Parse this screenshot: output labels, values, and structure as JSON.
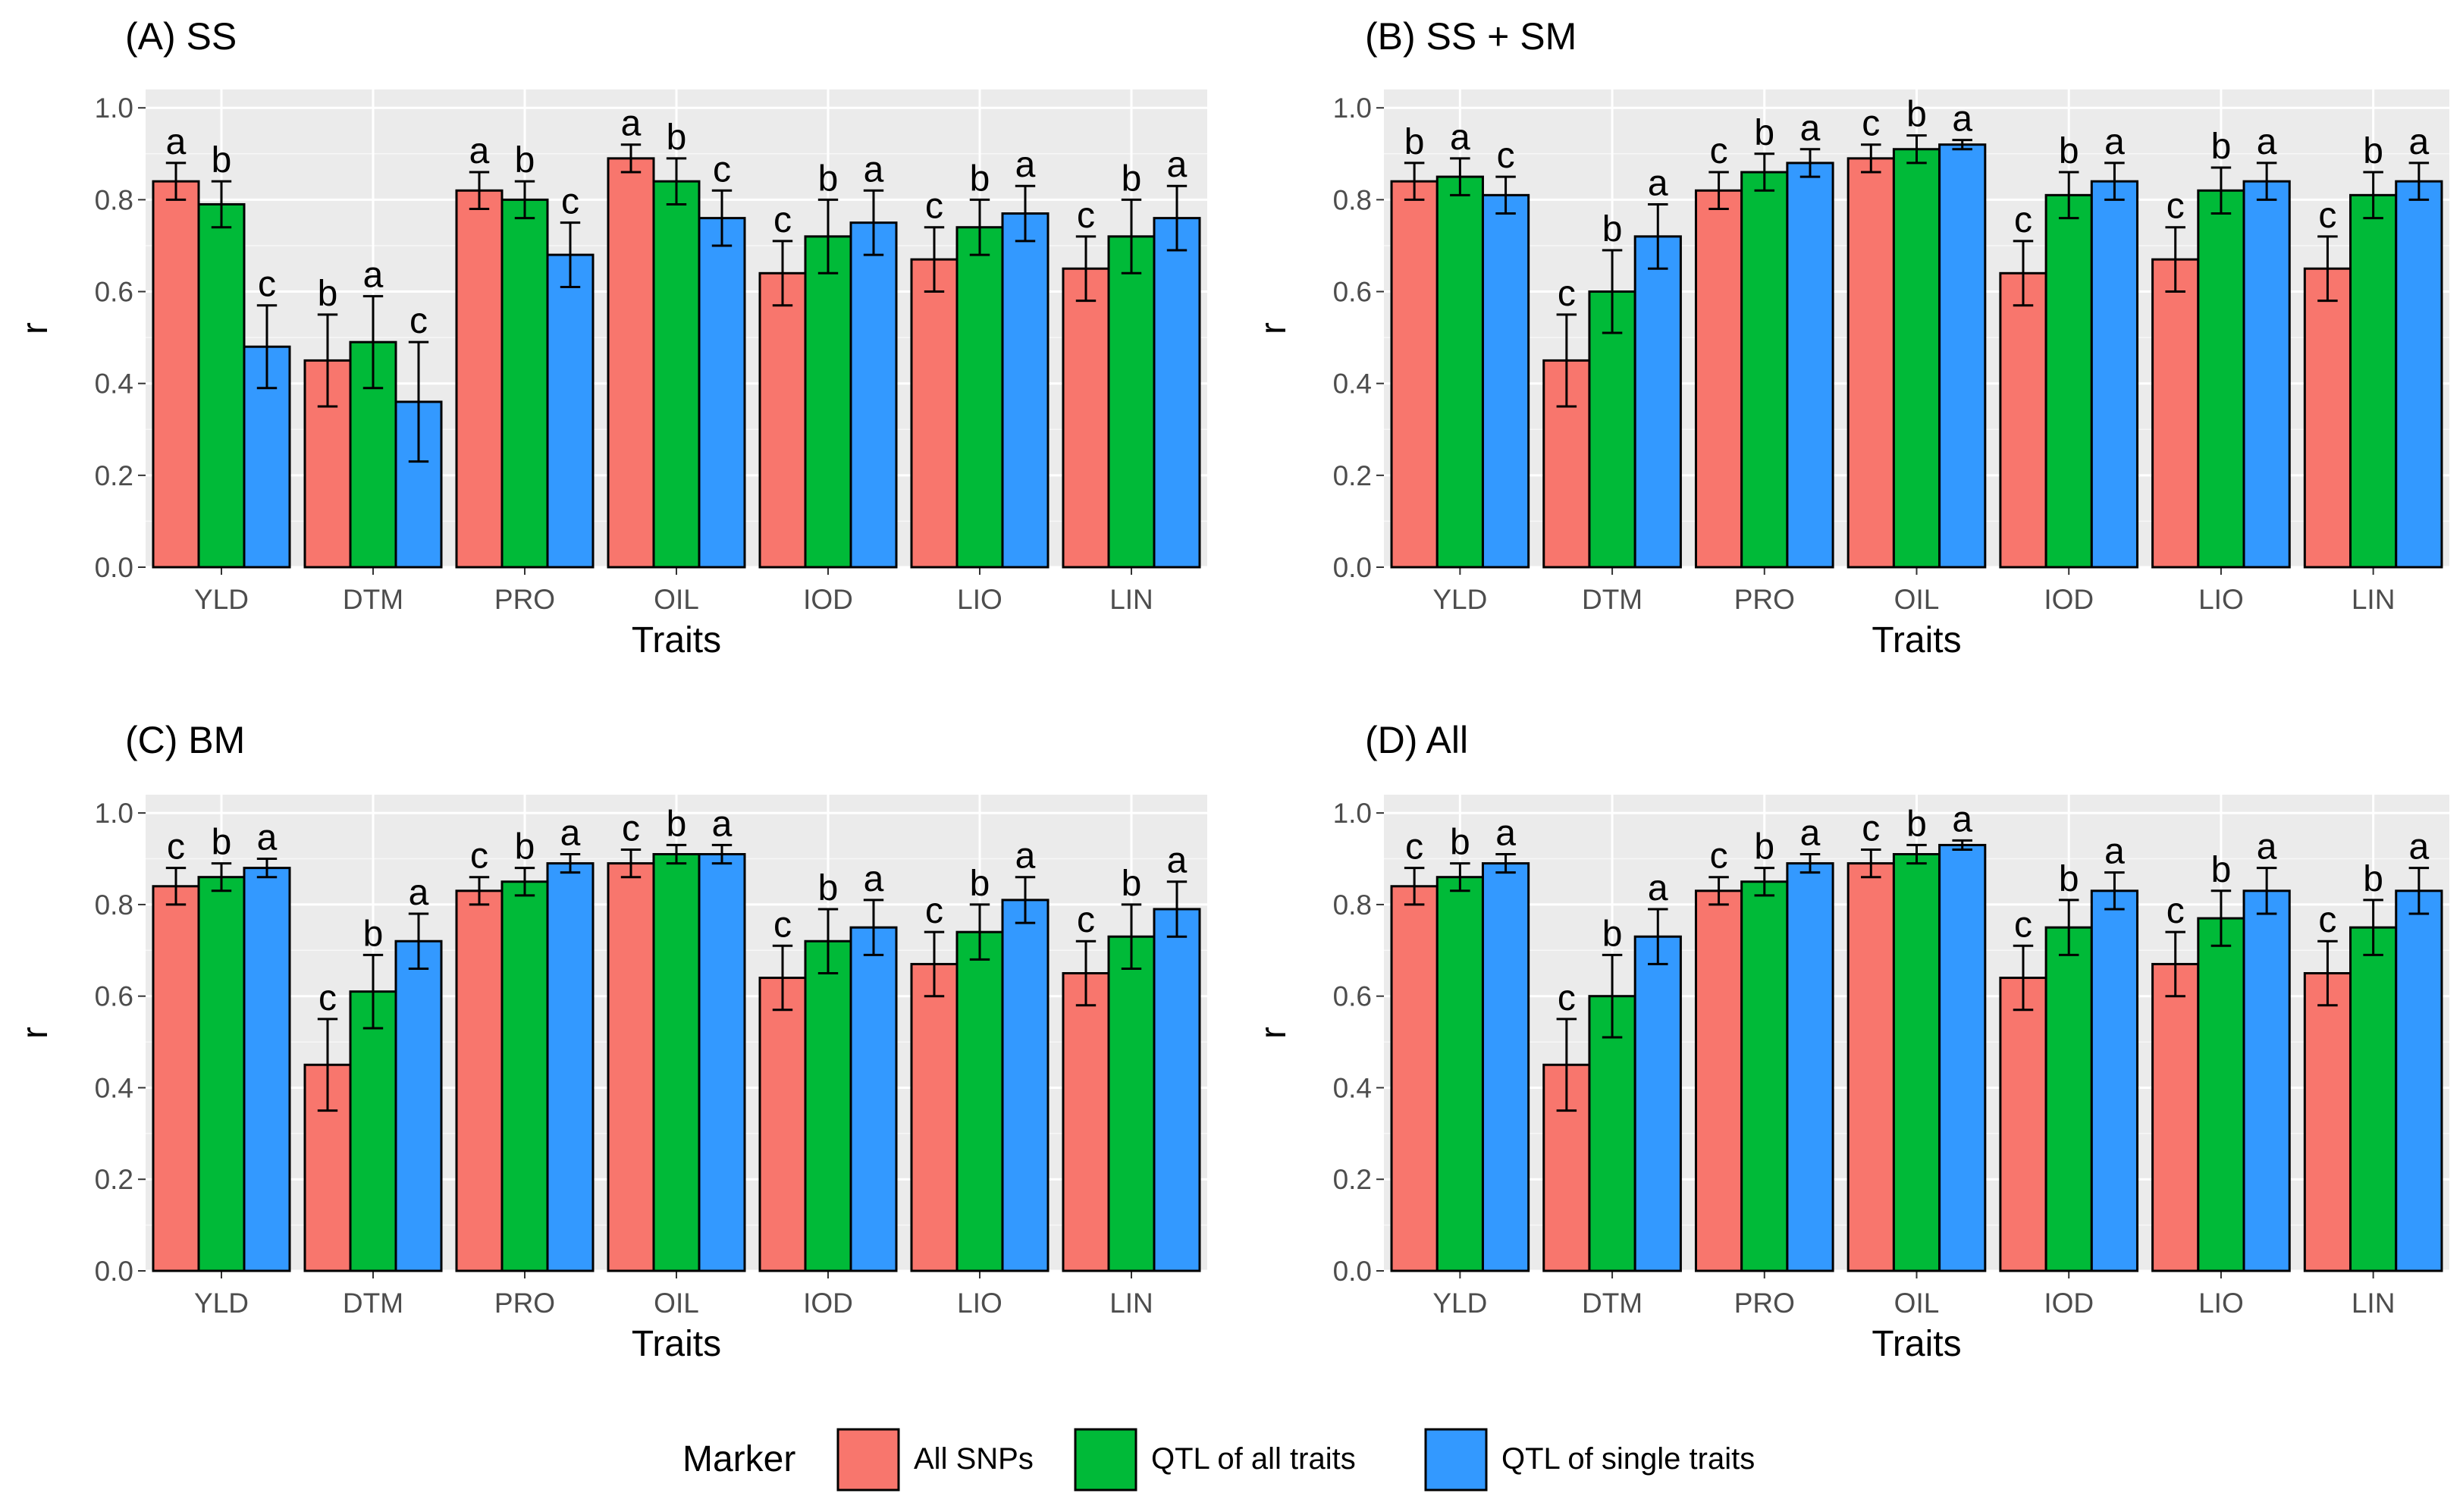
{
  "chart_data": [
    {
      "type": "bar",
      "title": "(A) SS",
      "xlabel": "Traits",
      "ylabel": "r",
      "ylim": [
        0,
        1.04
      ],
      "yticks": [
        "0.0",
        "0.2",
        "0.4",
        "0.6",
        "0.8",
        "1.0"
      ],
      "categories": [
        "YLD",
        "DTM",
        "PRO",
        "OIL",
        "IOD",
        "LIO",
        "LIN"
      ],
      "series": [
        {
          "name": "All SNPs",
          "values": [
            0.84,
            0.45,
            0.82,
            0.89,
            0.64,
            0.67,
            0.65
          ],
          "errors": [
            0.04,
            0.1,
            0.04,
            0.03,
            0.07,
            0.07,
            0.07
          ],
          "labels": [
            "a",
            "b",
            "a",
            "a",
            "c",
            "c",
            "c"
          ]
        },
        {
          "name": "QTL of all traits",
          "values": [
            0.79,
            0.49,
            0.8,
            0.84,
            0.72,
            0.74,
            0.72
          ],
          "errors": [
            0.05,
            0.1,
            0.04,
            0.05,
            0.08,
            0.06,
            0.08
          ],
          "labels": [
            "b",
            "a",
            "b",
            "b",
            "b",
            "b",
            "b"
          ]
        },
        {
          "name": "QTL of single traits",
          "values": [
            0.48,
            0.36,
            0.68,
            0.76,
            0.75,
            0.77,
            0.76
          ],
          "errors": [
            0.09,
            0.13,
            0.07,
            0.06,
            0.07,
            0.06,
            0.07
          ],
          "labels": [
            "c",
            "c",
            "c",
            "c",
            "a",
            "a",
            "a"
          ]
        }
      ]
    },
    {
      "type": "bar",
      "title": "(B) SS + SM",
      "xlabel": "Traits",
      "ylabel": "r",
      "ylim": [
        0,
        1.04
      ],
      "yticks": [
        "0.0",
        "0.2",
        "0.4",
        "0.6",
        "0.8",
        "1.0"
      ],
      "categories": [
        "YLD",
        "DTM",
        "PRO",
        "OIL",
        "IOD",
        "LIO",
        "LIN"
      ],
      "series": [
        {
          "name": "All SNPs",
          "values": [
            0.84,
            0.45,
            0.82,
            0.89,
            0.64,
            0.67,
            0.65
          ],
          "errors": [
            0.04,
            0.1,
            0.04,
            0.03,
            0.07,
            0.07,
            0.07
          ],
          "labels": [
            "b",
            "c",
            "c",
            "c",
            "c",
            "c",
            "c"
          ]
        },
        {
          "name": "QTL of all traits",
          "values": [
            0.85,
            0.6,
            0.86,
            0.91,
            0.81,
            0.82,
            0.81
          ],
          "errors": [
            0.04,
            0.09,
            0.04,
            0.03,
            0.05,
            0.05,
            0.05
          ],
          "labels": [
            "a",
            "b",
            "b",
            "b",
            "b",
            "b",
            "b"
          ]
        },
        {
          "name": "QTL of single traits",
          "values": [
            0.81,
            0.72,
            0.88,
            0.92,
            0.84,
            0.84,
            0.84
          ],
          "errors": [
            0.04,
            0.07,
            0.03,
            0.01,
            0.04,
            0.04,
            0.04
          ],
          "labels": [
            "c",
            "a",
            "a",
            "a",
            "a",
            "a",
            "a"
          ]
        }
      ]
    },
    {
      "type": "bar",
      "title": "(C) BM",
      "xlabel": "Traits",
      "ylabel": "r",
      "ylim": [
        0,
        1.04
      ],
      "yticks": [
        "0.0",
        "0.2",
        "0.4",
        "0.6",
        "0.8",
        "1.0"
      ],
      "categories": [
        "YLD",
        "DTM",
        "PRO",
        "OIL",
        "IOD",
        "LIO",
        "LIN"
      ],
      "series": [
        {
          "name": "All SNPs",
          "values": [
            0.84,
            0.45,
            0.83,
            0.89,
            0.64,
            0.67,
            0.65
          ],
          "errors": [
            0.04,
            0.1,
            0.03,
            0.03,
            0.07,
            0.07,
            0.07
          ],
          "labels": [
            "c",
            "c",
            "c",
            "c",
            "c",
            "c",
            "c"
          ]
        },
        {
          "name": "QTL of all traits",
          "values": [
            0.86,
            0.61,
            0.85,
            0.91,
            0.72,
            0.74,
            0.73
          ],
          "errors": [
            0.03,
            0.08,
            0.03,
            0.02,
            0.07,
            0.06,
            0.07
          ],
          "labels": [
            "b",
            "b",
            "b",
            "b",
            "b",
            "b",
            "b"
          ]
        },
        {
          "name": "QTL of single traits",
          "values": [
            0.88,
            0.72,
            0.89,
            0.91,
            0.75,
            0.81,
            0.79
          ],
          "errors": [
            0.02,
            0.06,
            0.02,
            0.02,
            0.06,
            0.05,
            0.06
          ],
          "labels": [
            "a",
            "a",
            "a",
            "a",
            "a",
            "a",
            "a"
          ]
        }
      ]
    },
    {
      "type": "bar",
      "title": "(D) All",
      "xlabel": "Traits",
      "ylabel": "r",
      "ylim": [
        0,
        1.04
      ],
      "yticks": [
        "0.0",
        "0.2",
        "0.4",
        "0.6",
        "0.8",
        "1.0"
      ],
      "categories": [
        "YLD",
        "DTM",
        "PRO",
        "OIL",
        "IOD",
        "LIO",
        "LIN"
      ],
      "series": [
        {
          "name": "All SNPs",
          "values": [
            0.84,
            0.45,
            0.83,
            0.89,
            0.64,
            0.67,
            0.65
          ],
          "errors": [
            0.04,
            0.1,
            0.03,
            0.03,
            0.07,
            0.07,
            0.07
          ],
          "labels": [
            "c",
            "c",
            "c",
            "c",
            "c",
            "c",
            "c"
          ]
        },
        {
          "name": "QTL of all traits",
          "values": [
            0.86,
            0.6,
            0.85,
            0.91,
            0.75,
            0.77,
            0.75
          ],
          "errors": [
            0.03,
            0.09,
            0.03,
            0.02,
            0.06,
            0.06,
            0.06
          ],
          "labels": [
            "b",
            "b",
            "b",
            "b",
            "b",
            "b",
            "b"
          ]
        },
        {
          "name": "QTL of single traits",
          "values": [
            0.89,
            0.73,
            0.89,
            0.93,
            0.83,
            0.83,
            0.83
          ],
          "errors": [
            0.02,
            0.06,
            0.02,
            0.01,
            0.04,
            0.05,
            0.05
          ],
          "labels": [
            "a",
            "a",
            "a",
            "a",
            "a",
            "a",
            "a"
          ]
        }
      ]
    }
  ],
  "legend": {
    "title": "Marker",
    "placement": "bottom",
    "items": [
      {
        "label": "All SNPs",
        "color": "#F8766D"
      },
      {
        "label": "QTL of all traits",
        "color": "#00BA38"
      },
      {
        "label": "QTL of single traits",
        "color": "#3399FF"
      }
    ]
  },
  "colors": {
    "panel_background": "#EBEBEB",
    "grid": "#FFFFFF",
    "tick_text": "#4D4D4D"
  }
}
